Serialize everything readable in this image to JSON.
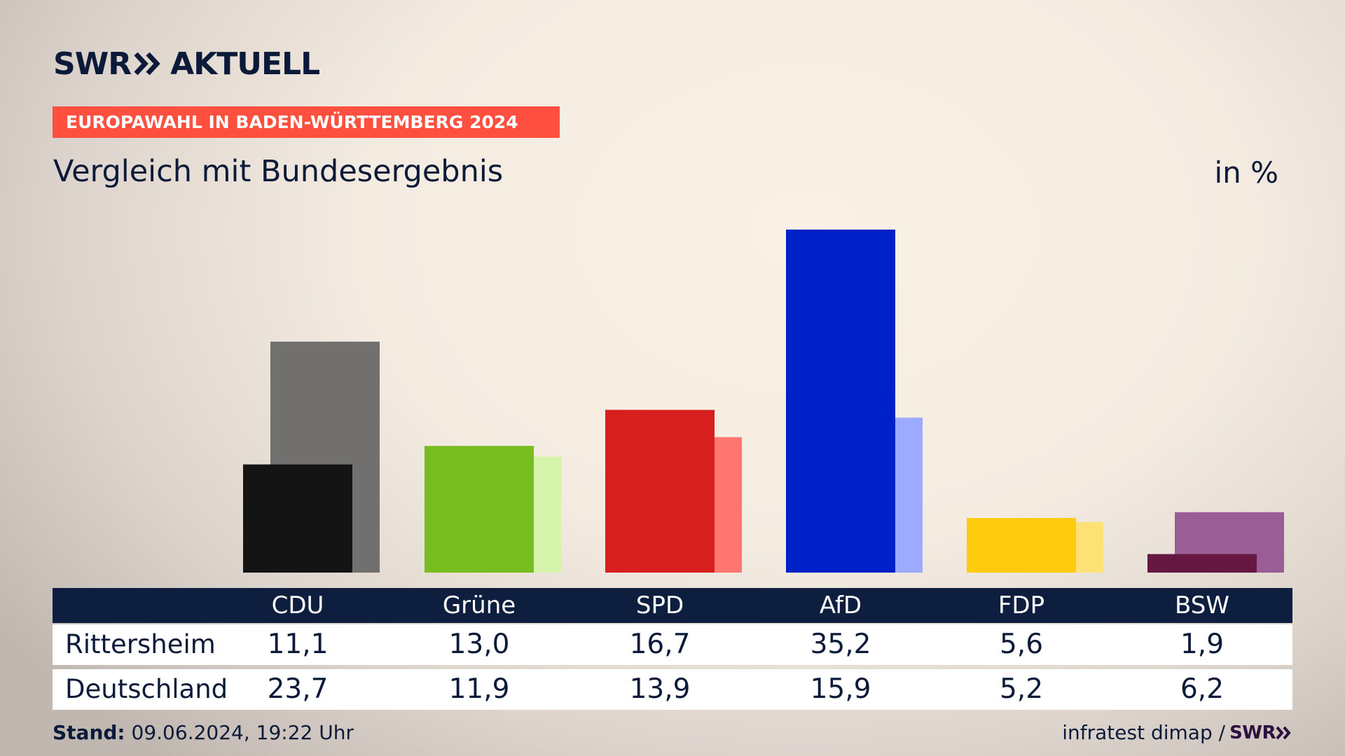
{
  "brand": {
    "name_left": "SWR",
    "name_right": "AKTUELL",
    "chevron_icon": "double-chevron-right-icon",
    "color": "#0c1a3a"
  },
  "banner": {
    "text": "EUROPAWAHL IN BADEN-WÜRTTEMBERG 2024",
    "color": "#ff4f3f"
  },
  "subtitle": "Vergleich mit Bundesergebnis",
  "unit": "in %",
  "chart_data": {
    "type": "bar",
    "title": "Vergleich mit Bundesergebnis",
    "xlabel": "",
    "ylabel": "in %",
    "ylim": [
      0,
      35.2
    ],
    "grid": false,
    "categories": [
      "CDU",
      "Grüne",
      "SPD",
      "AfD",
      "FDP",
      "BSW"
    ],
    "series": [
      {
        "name": "Rittersheim",
        "values": [
          11.1,
          13.0,
          16.7,
          35.2,
          5.6,
          1.9
        ],
        "colors": [
          "#141414",
          "#78bd1f",
          "#d71f1f",
          "#0020c8",
          "#ffcc0d",
          "#661843"
        ]
      },
      {
        "name": "Deutschland",
        "values": [
          23.7,
          11.9,
          13.9,
          15.9,
          5.2,
          6.2
        ],
        "colors": [
          "#72706e",
          "#d6f4ab",
          "#ff7570",
          "#9cabff",
          "#ffe275",
          "#9b5d95"
        ]
      }
    ]
  },
  "table": {
    "headers": [
      "CDU",
      "Grüne",
      "SPD",
      "AfD",
      "FDP",
      "BSW"
    ],
    "rows": [
      {
        "label": "Rittersheim",
        "values": [
          "11,1",
          "13,0",
          "16,7",
          "35,2",
          "5,6",
          "1,9"
        ]
      },
      {
        "label": "Deutschland",
        "values": [
          "23,7",
          "11,9",
          "13,9",
          "15,9",
          "5,2",
          "6,2"
        ]
      }
    ]
  },
  "footer": {
    "stand_label": "Stand:",
    "stand_value": "09.06.2024, 19:22 Uhr",
    "source": "infratest dimap /",
    "source_logo": "SWR"
  }
}
